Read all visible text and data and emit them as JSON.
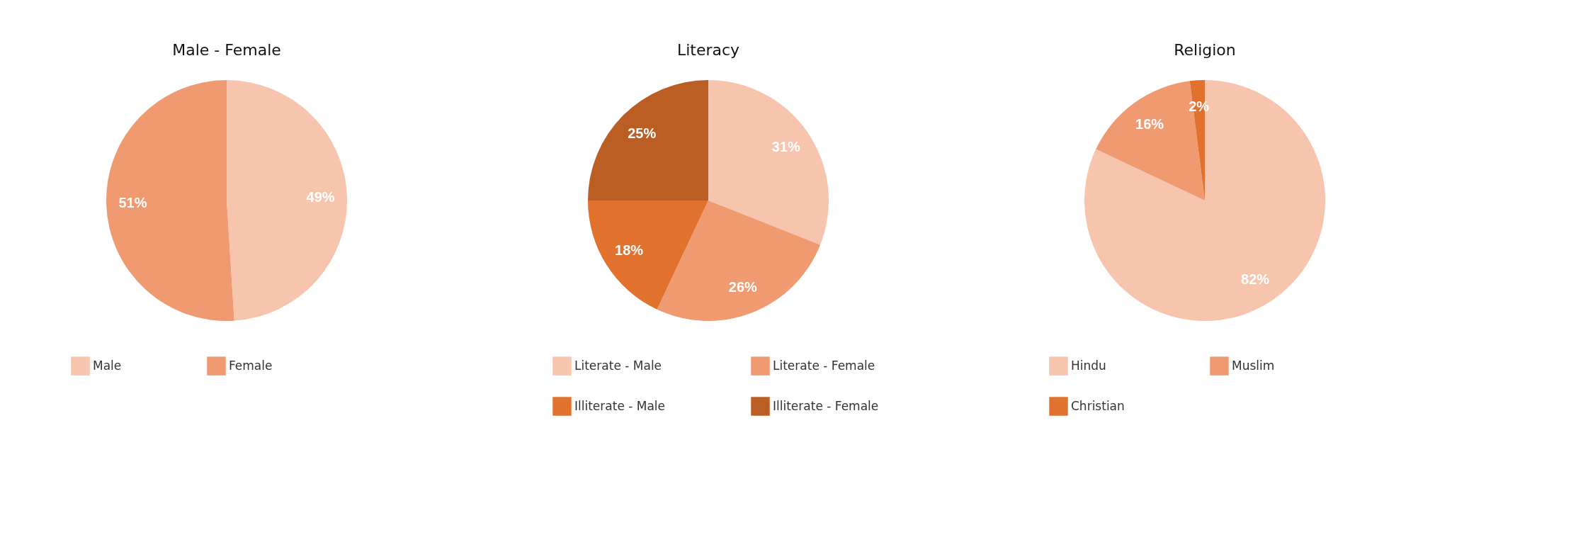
{
  "chart_data": [
    {
      "type": "pie",
      "title": "Male - Female",
      "categories": [
        "Male",
        "Female"
      ],
      "values": [
        49,
        51
      ],
      "colors": [
        "#f7c4ae",
        "#f09a72"
      ],
      "value_labels": [
        "49%",
        "51%"
      ],
      "legend": "bottom"
    },
    {
      "type": "pie",
      "title": "Literacy",
      "categories": [
        "Literate - Male",
        "Literate - Female",
        "Illiterate - Male",
        "Illiterate - Female"
      ],
      "values": [
        31,
        26,
        18,
        25
      ],
      "colors": [
        "#f7c4ae",
        "#f09a72",
        "#e0722e",
        "#bb5e24"
      ],
      "value_labels": [
        "31%",
        "26%",
        "18%",
        "25%"
      ],
      "legend": "bottom"
    },
    {
      "type": "pie",
      "title": "Religion",
      "categories": [
        "Hindu",
        "Muslim",
        "Christian"
      ],
      "values": [
        82,
        16,
        2
      ],
      "colors": [
        "#f7c4ae",
        "#f09a72",
        "#e0722e"
      ],
      "value_labels": [
        "82%",
        "16%",
        "2%"
      ],
      "legend": "bottom"
    }
  ]
}
